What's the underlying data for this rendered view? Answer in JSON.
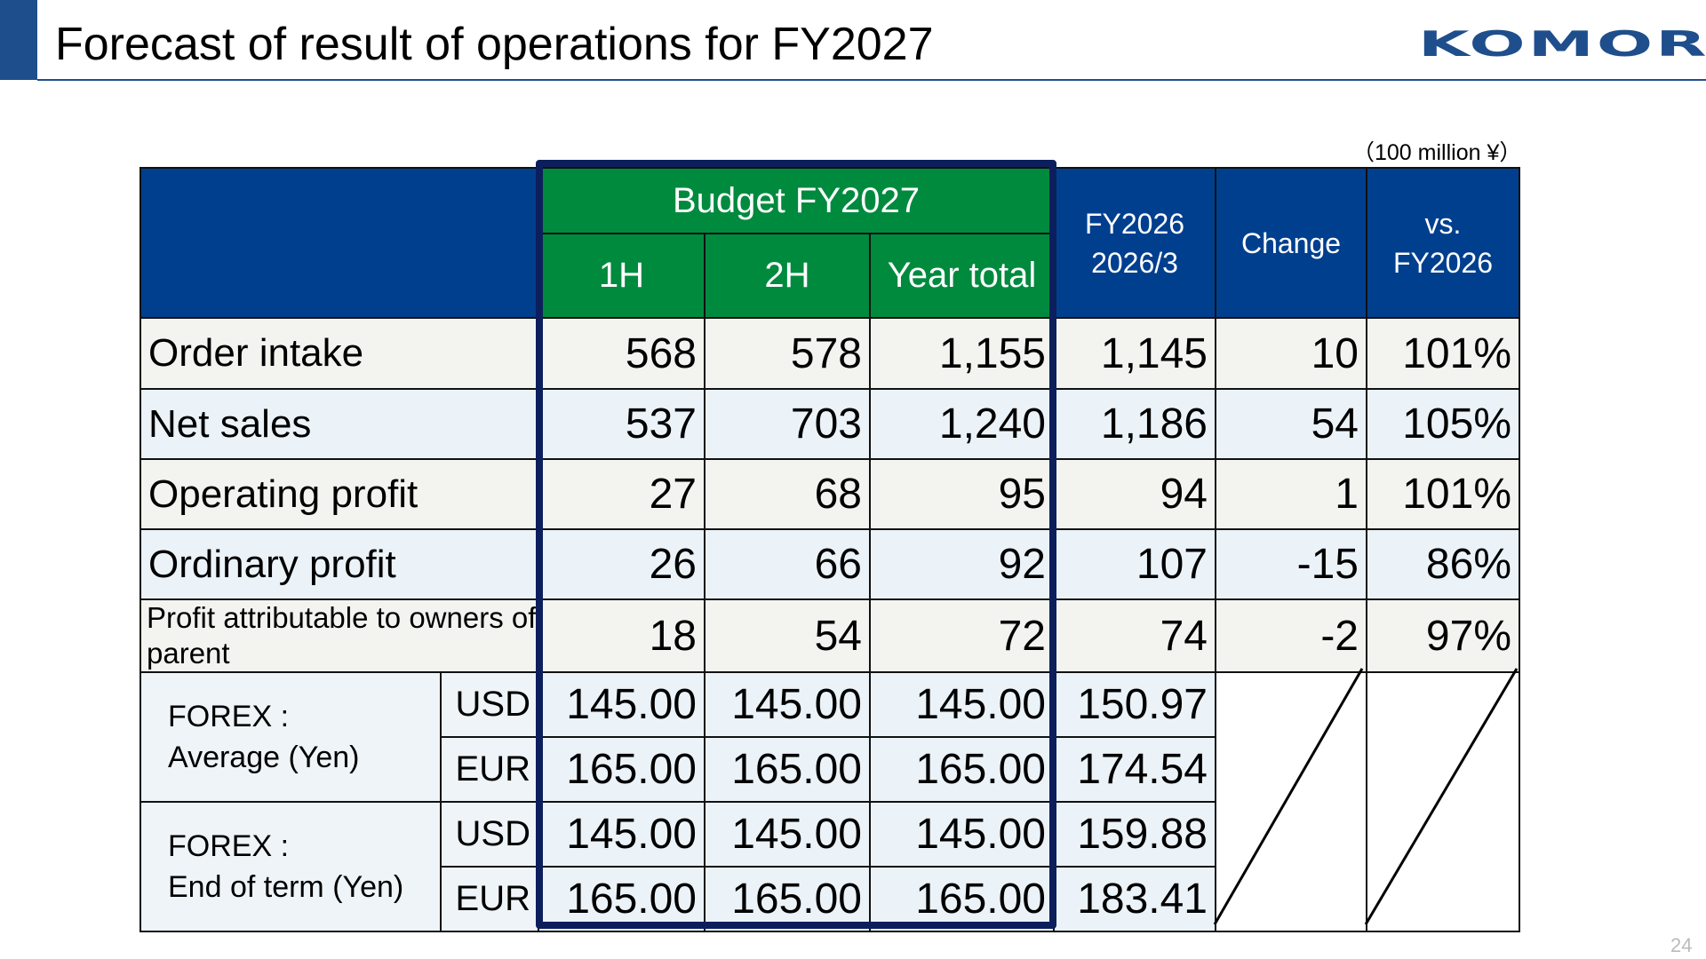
{
  "title": "Forecast of result of operations for FY2027",
  "logo": "KOMORI",
  "unit": "（100 million ¥）",
  "page_number": "24",
  "colors": {
    "header_blue": "#003f8e",
    "header_green": "#008a3e",
    "budget_frame": "#0c1f5c",
    "accent": "#1f4e8c"
  },
  "table": {
    "budget_header": "Budget FY2027",
    "col_1h": "1H",
    "col_2h": "2H",
    "col_year_total": "Year total",
    "col_fy2026_line1": "FY2026",
    "col_fy2026_line2": "2026/3",
    "col_change": "Change",
    "col_vs_line1": "vs.",
    "col_vs_line2": "FY2026",
    "rows": [
      {
        "label": "Order intake",
        "h1": "568",
        "h2": "578",
        "total": "1,155",
        "fy2026": "1,145",
        "change": "10",
        "vs": "101%"
      },
      {
        "label": "Net sales",
        "h1": "537",
        "h2": "703",
        "total": "1,240",
        "fy2026": "1,186",
        "change": "54",
        "vs": "105%"
      },
      {
        "label": "Operating profit",
        "h1": "27",
        "h2": "68",
        "total": "95",
        "fy2026": "94",
        "change": "1",
        "vs": "101%"
      },
      {
        "label": "Ordinary profit",
        "h1": "26",
        "h2": "66",
        "total": "92",
        "fy2026": "107",
        "change": "-15",
        "vs": "86%"
      },
      {
        "label": "Profit attributable to owners of parent",
        "h1": "18",
        "h2": "54",
        "total": "72",
        "fy2026": "74",
        "change": "-2",
        "vs": "97%"
      }
    ],
    "forex": [
      {
        "label_line1": "FOREX :",
        "label_line2": "Average (Yen)",
        "rows": [
          {
            "currency": "USD",
            "h1": "145.00",
            "h2": "145.00",
            "total": "145.00",
            "fy2026": "150.97"
          },
          {
            "currency": "EUR",
            "h1": "165.00",
            "h2": "165.00",
            "total": "165.00",
            "fy2026": "174.54"
          }
        ]
      },
      {
        "label_line1": "FOREX :",
        "label_line2": "End of term (Yen)",
        "rows": [
          {
            "currency": "USD",
            "h1": "145.00",
            "h2": "145.00",
            "total": "145.00",
            "fy2026": "159.88"
          },
          {
            "currency": "EUR",
            "h1": "165.00",
            "h2": "165.00",
            "total": "165.00",
            "fy2026": "183.41"
          }
        ]
      }
    ]
  }
}
